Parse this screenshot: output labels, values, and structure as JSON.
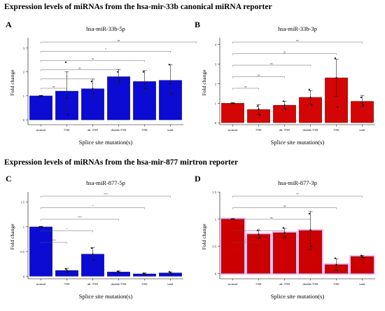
{
  "figure": {
    "section_titles": [
      "Expression levels of miRNAs from the hsa-mir-33b canonical miRNA reporter",
      "Expression levels of miRNAs from the hsa-mir-877 mirtron reporter"
    ]
  },
  "chart_data": [
    {
      "type": "bar",
      "panel": "A",
      "title": "hsa-miR-33b-5p",
      "xlabel": "Splice site mutation(s)",
      "ylabel": "Fold change",
      "categories": [
        "normal",
        "5'SS",
        "alt. 5'SS",
        "double 5'SS",
        "3'SS",
        "total"
      ],
      "values": [
        1.0,
        1.2,
        1.3,
        1.8,
        1.6,
        1.65
      ],
      "errors": [
        0.02,
        0.8,
        0.4,
        0.3,
        0.45,
        0.65
      ],
      "points": [
        [
          1.0,
          1.0,
          1.0
        ],
        [
          2.4,
          0.9,
          0.2
        ],
        [
          1.6,
          1.3,
          1.1
        ],
        [
          2.0,
          1.7,
          1.6
        ],
        [
          2.0,
          1.5,
          1.3
        ],
        [
          2.3,
          1.5,
          1.1
        ]
      ],
      "ylim": [
        -0.2,
        3.3
      ],
      "yticks": [
        0,
        1,
        2,
        3
      ],
      "significance": [
        "ns",
        "*",
        "ns",
        "ns",
        "*",
        "ns"
      ],
      "bar_color": "#0b0bd4",
      "highlight": false
    },
    {
      "type": "bar",
      "panel": "B",
      "title": "hsa-miR-33b-3p",
      "xlabel": "Splice site mutation(s)",
      "ylabel": "Fold change",
      "categories": [
        "normal",
        "5'SS",
        "alt. 5'SS",
        "double 5'SS",
        "3'SS",
        "total"
      ],
      "values": [
        1.0,
        0.68,
        0.9,
        1.3,
        2.3,
        1.1
      ],
      "errors": [
        0.02,
        0.25,
        0.2,
        0.35,
        0.95,
        0.3
      ],
      "points": [
        [
          1.0,
          1.0,
          1.0
        ],
        [
          0.85,
          0.7,
          0.4
        ],
        [
          1.1,
          0.9,
          0.7
        ],
        [
          1.7,
          1.3,
          0.9
        ],
        [
          3.3,
          2.3,
          0.8
        ],
        [
          1.3,
          1.0,
          0.9
        ]
      ],
      "ylim": [
        -0.1,
        4.2
      ],
      "yticks": [
        0,
        1,
        2,
        3,
        4
      ],
      "significance": [
        "ns",
        "ns",
        "ns",
        "ns",
        "ns"
      ],
      "bar_color": "#d40505",
      "highlight": false
    },
    {
      "type": "bar",
      "panel": "C",
      "title": "hsa-miR-877-5p",
      "xlabel": "Splice site mutation(s)",
      "ylabel": "Fold change",
      "categories": [
        "normal",
        "5'SS",
        "alt. 5'SS",
        "double 5'SS",
        "3'SS",
        "total"
      ],
      "values": [
        1.0,
        0.12,
        0.45,
        0.09,
        0.05,
        0.07
      ],
      "errors": [
        0.01,
        0.04,
        0.13,
        0.02,
        0.02,
        0.02
      ],
      "points": [
        [
          1.0,
          1.0,
          1.0
        ],
        [
          0.15,
          0.12,
          0.09
        ],
        [
          0.57,
          0.45,
          0.33
        ],
        [
          0.1,
          0.09,
          0.08
        ],
        [
          0.06,
          0.05,
          0.04
        ],
        [
          0.09,
          0.07,
          0.05
        ]
      ],
      "ylim": [
        -0.05,
        1.65
      ],
      "yticks": [
        0.0,
        0.5,
        1.0,
        1.5
      ],
      "significance": [
        "***",
        "*",
        "***",
        "*",
        "***"
      ],
      "bar_color": "#0b0bd4",
      "highlight": false
    },
    {
      "type": "bar",
      "panel": "D",
      "title": "hsa-miR-877-3p",
      "xlabel": "Splice site mutation(s)",
      "ylabel": "Fold change",
      "categories": [
        "normal",
        "5'SS",
        "alt. 5'SS",
        "double 5'SS",
        "3'SS",
        "total"
      ],
      "values": [
        1.0,
        0.72,
        0.75,
        0.79,
        0.16,
        0.31
      ],
      "errors": [
        0.01,
        0.07,
        0.08,
        0.35,
        0.11,
        0.02
      ],
      "points": [
        [
          1.0,
          1.0,
          1.0
        ],
        [
          0.79,
          0.72,
          0.66
        ],
        [
          0.84,
          0.75,
          0.67
        ],
        [
          1.1,
          0.8,
          0.5
        ],
        [
          0.28,
          0.16,
          0.05
        ],
        [
          0.33,
          0.31,
          0.29
        ]
      ],
      "ylim": [
        -0.1,
        1.45
      ],
      "yticks": [
        0.0,
        0.5,
        1.0,
        1.5
      ],
      "significance": [
        "*",
        "ns",
        "ns",
        "ns",
        "**"
      ],
      "bar_color": "#cc0000",
      "highlight": true
    }
  ]
}
